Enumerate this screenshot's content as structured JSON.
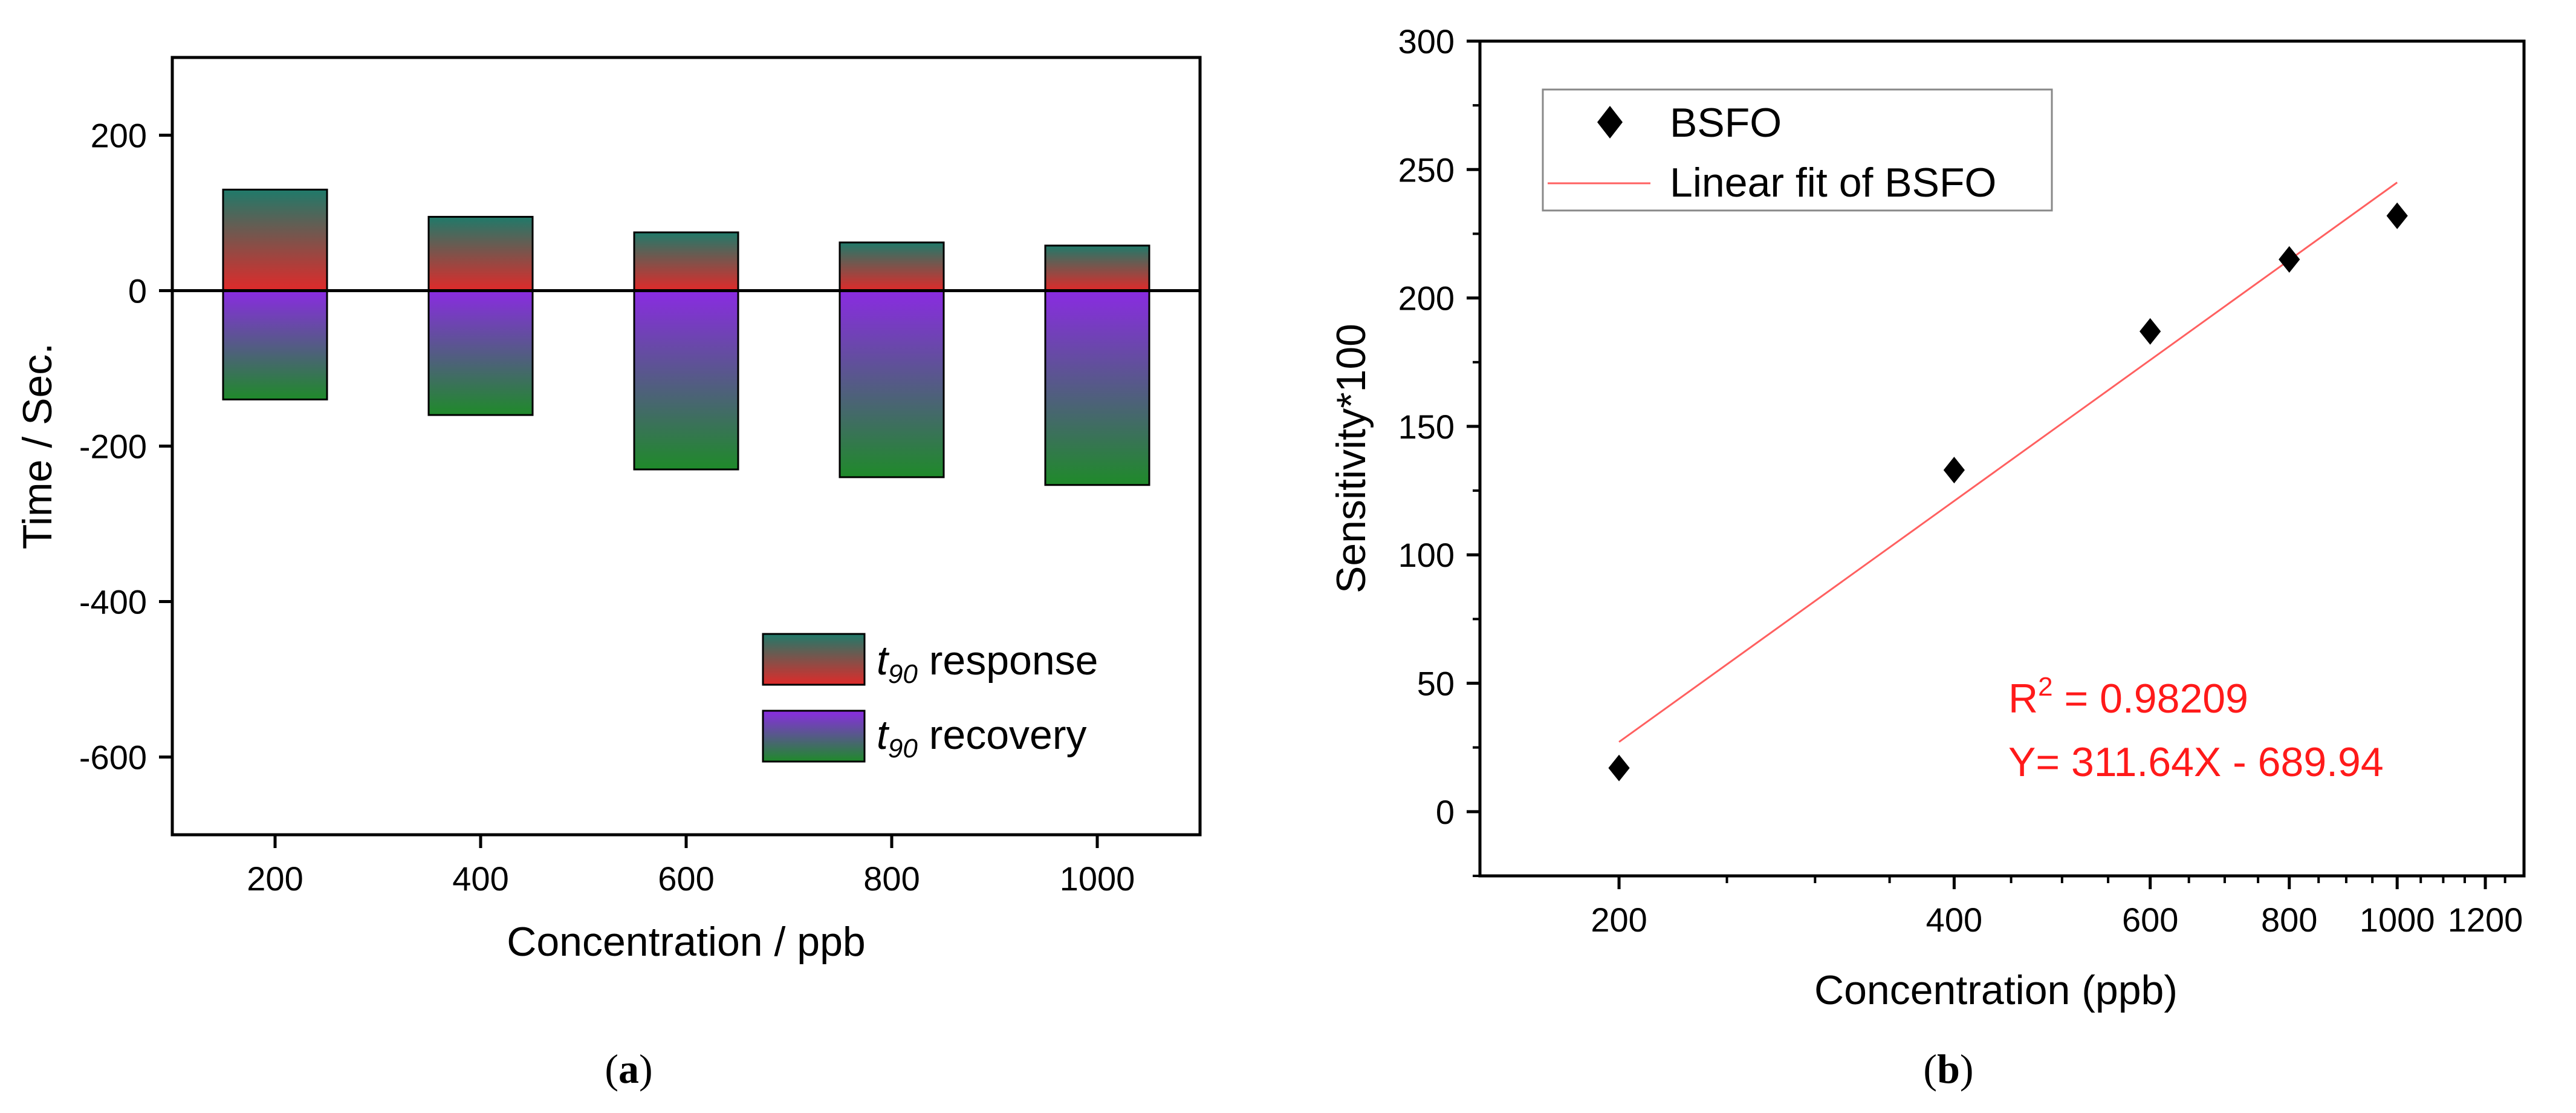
{
  "panel_a": {
    "caption": {
      "open": "(",
      "letter": "a",
      "close": ")"
    },
    "legend": {
      "response": {
        "label_italic_t": "t",
        "label_sub": "90",
        "label_rest": " response"
      },
      "recovery": {
        "label_italic_t": "t",
        "label_sub": "90",
        "label_rest": " recovery"
      }
    }
  },
  "panel_b": {
    "caption": {
      "open": "(",
      "letter": "b",
      "close": ")"
    },
    "legend": {
      "points_label": "BSFO",
      "fit_label": "Linear fit of BSFO"
    },
    "annotation": {
      "r2_prefix": "R",
      "r2_sup": "2",
      "r2_value": " = 0.98209",
      "equation": "Y= 311.64X - 689.94"
    },
    "colors": {
      "fit_line": "#ff6060",
      "annotation": "#ff1a1a",
      "marker": "#000000"
    }
  },
  "chart_data": [
    {
      "id": "a",
      "type": "bar",
      "title": "",
      "xlabel": "Concentration / ppb",
      "ylabel": "Time / Sec.",
      "categories": [
        "200",
        "400",
        "600",
        "800",
        "1000"
      ],
      "series": [
        {
          "name": "t90 response",
          "values": [
            130,
            95,
            75,
            62,
            58
          ],
          "gradient": [
            "#1f7a6a",
            "#e02a2a"
          ]
        },
        {
          "name": "t90 recovery",
          "values": [
            -140,
            -160,
            -230,
            -240,
            -250
          ],
          "gradient": [
            "#8a2be2",
            "#1f8a2a"
          ]
        }
      ],
      "ylim": [
        -700,
        300
      ],
      "yticks": [
        200,
        0,
        -200,
        -400,
        -600
      ],
      "ytick_labels": [
        "200",
        "0",
        "-200",
        "-400",
        "-600"
      ],
      "legend_position": "bottom-right",
      "grid": false
    },
    {
      "id": "b",
      "type": "scatter",
      "title": "",
      "xlabel": "Concentration (ppb)",
      "ylabel": "Sensitivity*100",
      "x_scale": "log",
      "xlim": [
        150,
        1300
      ],
      "ylim": [
        -25,
        300
      ],
      "xticks": [
        200,
        400,
        600,
        800,
        1000,
        1200
      ],
      "xtick_labels": [
        "200",
        "400",
        "600",
        "800",
        "1000",
        "1200"
      ],
      "yticks": [
        0,
        50,
        100,
        150,
        200,
        250,
        300
      ],
      "ytick_labels": [
        "0",
        "50",
        "100",
        "150",
        "200",
        "250",
        "300"
      ],
      "series": [
        {
          "name": "BSFO",
          "x": [
            200,
            400,
            600,
            800,
            1000
          ],
          "y": [
            17,
            133,
            187,
            215,
            232
          ]
        }
      ],
      "fit": {
        "name": "Linear fit of BSFO",
        "slope": 311.64,
        "intercept": -689.94,
        "x_range": [
          200,
          1000
        ]
      },
      "legend_position": "top-left",
      "grid": false
    }
  ]
}
